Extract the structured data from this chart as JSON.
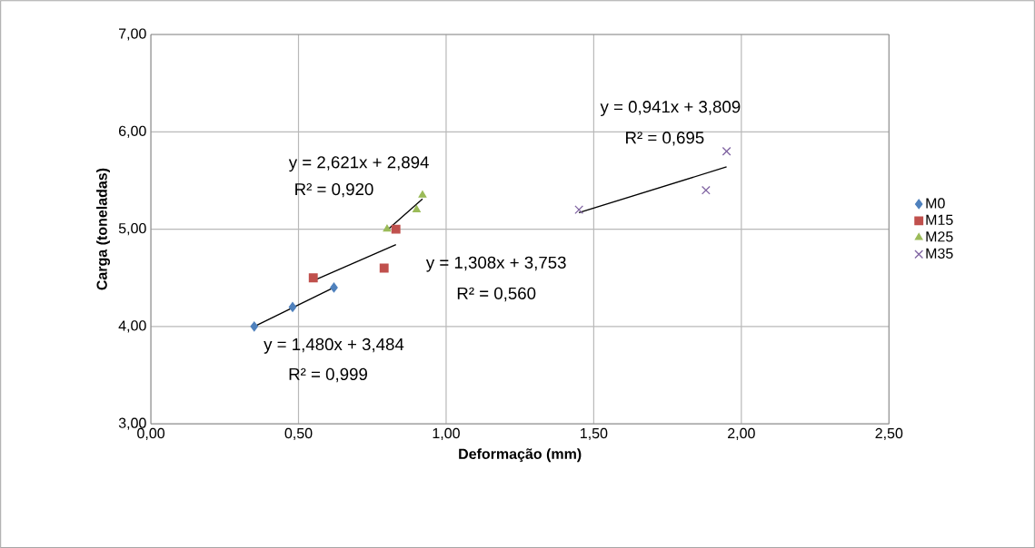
{
  "chart_data": {
    "type": "scatter",
    "xlabel": "Deformação (mm)",
    "ylabel": "Carga (toneladas)",
    "xlim": [
      0,
      2.5
    ],
    "ylim": [
      3,
      7
    ],
    "xticks": [
      {
        "value": 0,
        "label": "0,00"
      },
      {
        "value": 0.5,
        "label": "0,50"
      },
      {
        "value": 1,
        "label": "1,00"
      },
      {
        "value": 1.5,
        "label": "1,50"
      },
      {
        "value": 2,
        "label": "2,00"
      },
      {
        "value": 2.5,
        "label": "2,50"
      }
    ],
    "yticks": [
      {
        "value": 3,
        "label": "3,00"
      },
      {
        "value": 4,
        "label": "4,00"
      },
      {
        "value": 5,
        "label": "5,00"
      },
      {
        "value": 6,
        "label": "6,00"
      },
      {
        "value": 7,
        "label": "7,00"
      }
    ],
    "grid": true,
    "legend": "right",
    "series": [
      {
        "name": "M0",
        "color": "#4f81bd",
        "marker": "diamond",
        "x": [
          0.35,
          0.48,
          0.62
        ],
        "values": [
          4.0,
          4.2,
          4.4
        ]
      },
      {
        "name": "M15",
        "color": "#c0504d",
        "marker": "square",
        "x": [
          0.55,
          0.79,
          0.83
        ],
        "values": [
          4.5,
          4.6,
          5.0
        ]
      },
      {
        "name": "M25",
        "color": "#9bbb59",
        "marker": "triangle",
        "x": [
          0.8,
          0.9,
          0.92
        ],
        "values": [
          5.0,
          5.2,
          5.35
        ]
      },
      {
        "name": "M35",
        "color": "#8064a2",
        "marker": "cross",
        "x": [
          1.45,
          1.88,
          1.95
        ],
        "values": [
          5.2,
          5.4,
          5.8
        ]
      },
      {
        "type": "line",
        "color": "#000000",
        "marker": "none",
        "x": [
          0.35,
          0.62
        ],
        "values": [
          4.0,
          4.4
        ]
      },
      {
        "type": "line",
        "color": "#000000",
        "marker": "none",
        "x": [
          0.55,
          0.83
        ],
        "values": [
          4.47,
          4.84
        ]
      },
      {
        "type": "line",
        "color": "#000000",
        "marker": "none",
        "x": [
          0.8,
          0.92
        ],
        "values": [
          4.99,
          5.31
        ]
      },
      {
        "type": "line",
        "color": "#000000",
        "marker": "none",
        "x": [
          1.45,
          1.95
        ],
        "values": [
          5.17,
          5.64
        ]
      }
    ],
    "annotations": [
      "y = 1,480x + 3,484",
      "R² = 0,999",
      "y = 1,308x + 3,753",
      "R² = 0,560",
      "y = 2,621x + 2,894",
      "R² = 0,920",
      "y = 0,941x + 3,809",
      "R² = 0,695"
    ]
  }
}
